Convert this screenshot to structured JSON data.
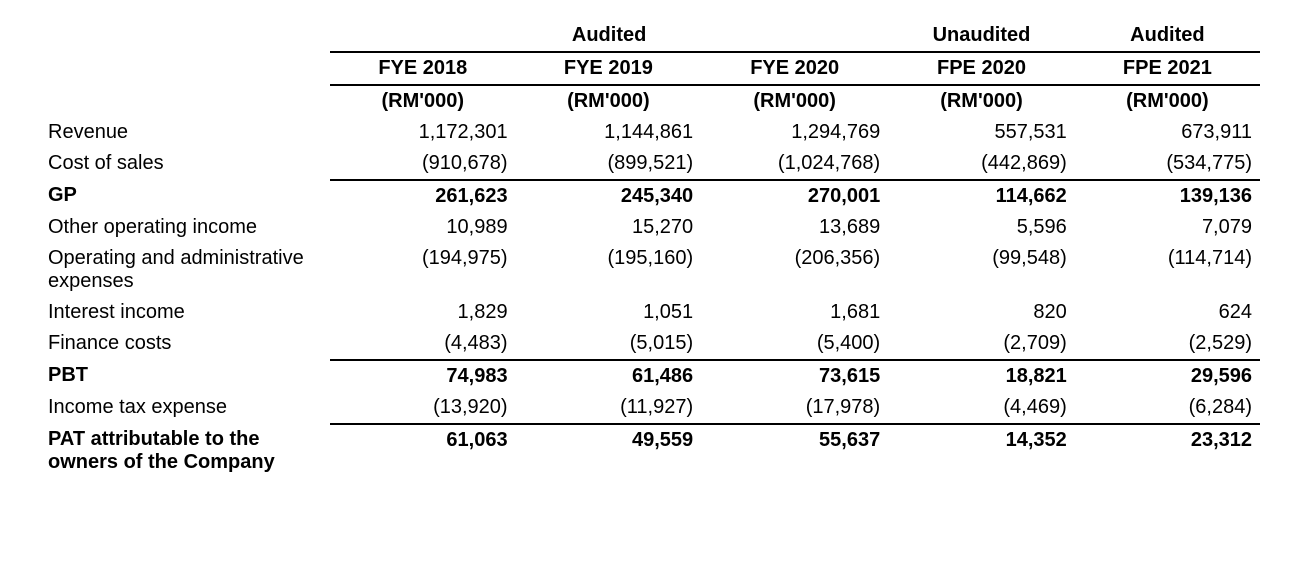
{
  "group_headers": {
    "audited_123": "Audited",
    "unaudited_4": "Unaudited",
    "audited_5": "Audited"
  },
  "col_headers": [
    "FYE 2018",
    "FYE 2019",
    "FYE 2020",
    "FPE 2020",
    "FPE 2021"
  ],
  "unit_label": "(RM'000)",
  "rows": {
    "revenue": {
      "label": "Revenue",
      "v": [
        "1,172,301",
        "1,144,861",
        "1,294,769",
        "557,531",
        "673,911"
      ]
    },
    "cos": {
      "label": "Cost of sales",
      "v": [
        "(910,678)",
        "(899,521)",
        "(1,024,768)",
        "(442,869)",
        "(534,775)"
      ]
    },
    "gp": {
      "label": "GP",
      "v": [
        "261,623",
        "245,340",
        "270,001",
        "114,662",
        "139,136"
      ]
    },
    "ooi": {
      "label": "Other operating income",
      "v": [
        "10,989",
        "15,270",
        "13,689",
        "5,596",
        "7,079"
      ]
    },
    "opadmin": {
      "label": "Operating and administrative expenses",
      "v": [
        "(194,975)",
        "(195,160)",
        "(206,356)",
        "(99,548)",
        "(114,714)"
      ]
    },
    "intinc": {
      "label": "Interest income",
      "v": [
        "1,829",
        "1,051",
        "1,681",
        "820",
        "624"
      ]
    },
    "fincosts": {
      "label": "Finance costs",
      "v": [
        "(4,483)",
        "(5,015)",
        "(5,400)",
        "(2,709)",
        "(2,529)"
      ]
    },
    "pbt": {
      "label": "PBT",
      "v": [
        "74,983",
        "61,486",
        "73,615",
        "18,821",
        "29,596"
      ]
    },
    "tax": {
      "label": "Income tax expense",
      "v": [
        "(13,920)",
        "(11,927)",
        "(17,978)",
        "(4,469)",
        "(6,284)"
      ]
    },
    "pat": {
      "label": "PAT attributable to the owners of the Company",
      "v": [
        "61,063",
        "49,559",
        "55,637",
        "14,352",
        "23,312"
      ]
    }
  }
}
